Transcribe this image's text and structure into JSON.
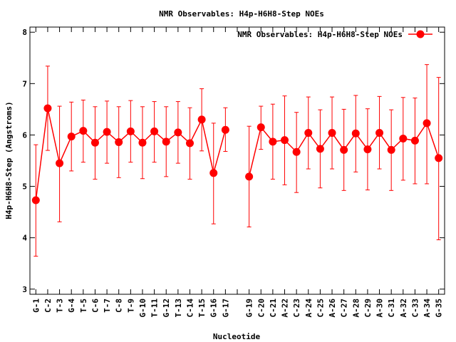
{
  "chart_data": {
    "type": "line",
    "title": "NMR Observables: H4p-H6H8-Step NOEs",
    "xlabel": "Nucleotide",
    "ylabel": "H4p-H6H8-Step (Angstroms)",
    "ylim": [
      2.9,
      8.1
    ],
    "yticks": [
      3,
      4,
      5,
      6,
      7,
      8
    ],
    "grid": false,
    "legend_position": "top-right",
    "color": "#ff0000",
    "series": [
      {
        "name": "NMR Observables: H4p-H6H8-Step NOEs",
        "x": [
          "G-1",
          "C-2",
          "T-3",
          "G-4",
          "T-5",
          "C-6",
          "T-7",
          "C-8",
          "T-9",
          "G-10",
          "T-11",
          "G-12",
          "T-13",
          "C-14",
          "T-15",
          "G-16",
          "G-17",
          "G-19",
          "C-20",
          "C-21",
          "A-22",
          "C-23",
          "A-24",
          "C-25",
          "A-26",
          "C-27",
          "A-28",
          "C-29",
          "A-30",
          "C-31",
          "A-32",
          "C-33",
          "A-34",
          "G-35"
        ],
        "index": [
          1,
          2,
          3,
          4,
          5,
          6,
          7,
          8,
          9,
          10,
          11,
          12,
          13,
          14,
          15,
          16,
          17,
          19,
          20,
          21,
          22,
          23,
          24,
          25,
          26,
          27,
          28,
          29,
          30,
          31,
          32,
          33,
          34,
          35
        ],
        "values": [
          4.73,
          6.52,
          5.45,
          5.97,
          6.08,
          5.85,
          6.06,
          5.86,
          6.07,
          5.85,
          6.07,
          5.87,
          6.05,
          5.84,
          6.3,
          5.26,
          6.1,
          5.19,
          6.15,
          5.87,
          5.9,
          5.67,
          6.04,
          5.73,
          6.04,
          5.71,
          6.03,
          5.72,
          6.04,
          5.71,
          5.93,
          5.89,
          6.23,
          5.55
        ],
        "lower": [
          3.64,
          5.7,
          4.31,
          5.3,
          5.47,
          5.14,
          5.45,
          5.17,
          5.47,
          5.15,
          5.47,
          5.19,
          5.45,
          5.14,
          5.69,
          4.27,
          5.68,
          4.21,
          5.72,
          5.14,
          5.03,
          4.88,
          5.34,
          4.97,
          5.34,
          4.92,
          5.28,
          4.93,
          5.34,
          4.92,
          5.12,
          5.05,
          5.05,
          3.96
        ],
        "upper": [
          5.81,
          7.34,
          6.56,
          6.64,
          6.68,
          6.55,
          6.66,
          6.55,
          6.67,
          6.55,
          6.65,
          6.55,
          6.65,
          6.53,
          6.9,
          6.23,
          6.53,
          6.17,
          6.56,
          6.6,
          6.76,
          6.44,
          6.74,
          6.49,
          6.74,
          6.5,
          6.77,
          6.51,
          6.75,
          6.49,
          6.73,
          6.72,
          7.37,
          7.12
        ]
      }
    ]
  }
}
